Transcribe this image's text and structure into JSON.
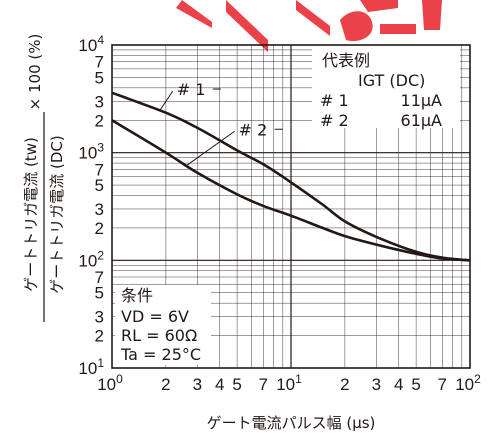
{
  "chart_data": {
    "type": "line",
    "x_scale": "log",
    "y_scale": "log",
    "xlim": [
      1,
      100
    ],
    "ylim": [
      10,
      10000
    ],
    "grid": true,
    "xlabel": "ゲート電流パルス幅 (μs)",
    "ylabel_top": "ゲートトリガ電流 (tw)",
    "ylabel_bottom": "ゲートトリガ電流 (DC)",
    "ylabel_factor": "× 100 (%)",
    "x_ticks": [
      {
        "v": 1,
        "m": "10",
        "e": "0"
      },
      {
        "v": 2,
        "t": "2"
      },
      {
        "v": 3,
        "t": "3"
      },
      {
        "v": 4,
        "t": "4"
      },
      {
        "v": 5,
        "t": "5"
      },
      {
        "v": 7,
        "t": "7"
      },
      {
        "v": 10,
        "m": "10",
        "e": "1"
      },
      {
        "v": 20,
        "t": "2"
      },
      {
        "v": 30,
        "t": "3"
      },
      {
        "v": 40,
        "t": "4"
      },
      {
        "v": 50,
        "t": "5"
      },
      {
        "v": 70,
        "t": "7"
      },
      {
        "v": 100,
        "m": "10",
        "e": "2"
      }
    ],
    "y_ticks": [
      {
        "v": 10,
        "m": "10",
        "e": "1"
      },
      {
        "v": 20,
        "t": "2"
      },
      {
        "v": 30,
        "t": "3"
      },
      {
        "v": 50,
        "t": "5"
      },
      {
        "v": 70,
        "t": "7"
      },
      {
        "v": 100,
        "m": "10",
        "e": "2"
      },
      {
        "v": 200,
        "t": "2"
      },
      {
        "v": 300,
        "t": "3"
      },
      {
        "v": 500,
        "t": "5"
      },
      {
        "v": 700,
        "t": "7"
      },
      {
        "v": 1000,
        "m": "10",
        "e": "3"
      },
      {
        "v": 2000,
        "t": "2"
      },
      {
        "v": 3000,
        "t": "3"
      },
      {
        "v": 5000,
        "t": "5"
      },
      {
        "v": 7000,
        "t": "7"
      },
      {
        "v": 10000,
        "m": "10",
        "e": "4"
      }
    ],
    "series": [
      {
        "name": "# 1",
        "x": [
          1,
          2,
          3,
          5,
          7,
          10,
          15,
          20,
          30,
          50,
          70,
          100
        ],
        "y": [
          3600,
          2350,
          1700,
          1050,
          780,
          530,
          330,
          230,
          165,
          120,
          106,
          100
        ]
      },
      {
        "name": "# 2",
        "x": [
          1,
          2,
          3,
          5,
          7,
          10,
          15,
          20,
          30,
          50,
          70,
          100
        ],
        "y": [
          2000,
          1000,
          650,
          410,
          320,
          260,
          200,
          168,
          140,
          115,
          104,
          100
        ]
      }
    ],
    "series_labels": [
      {
        "name": "# 1",
        "label_x": 2.3,
        "label_y": 3900
      },
      {
        "name": "# 2",
        "label_x": 5.1,
        "label_y": 1650
      }
    ],
    "legend_title": "代表例",
    "legend_header": "IGT (DC)",
    "legend_rows": [
      {
        "name": "# 1",
        "value": "11μA"
      },
      {
        "name": "# 2",
        "value": "61μA"
      }
    ],
    "conditions_title": "条件",
    "conditions": [
      "VD = 6V",
      "RL = 60Ω",
      "Ta = 25°C"
    ]
  }
}
